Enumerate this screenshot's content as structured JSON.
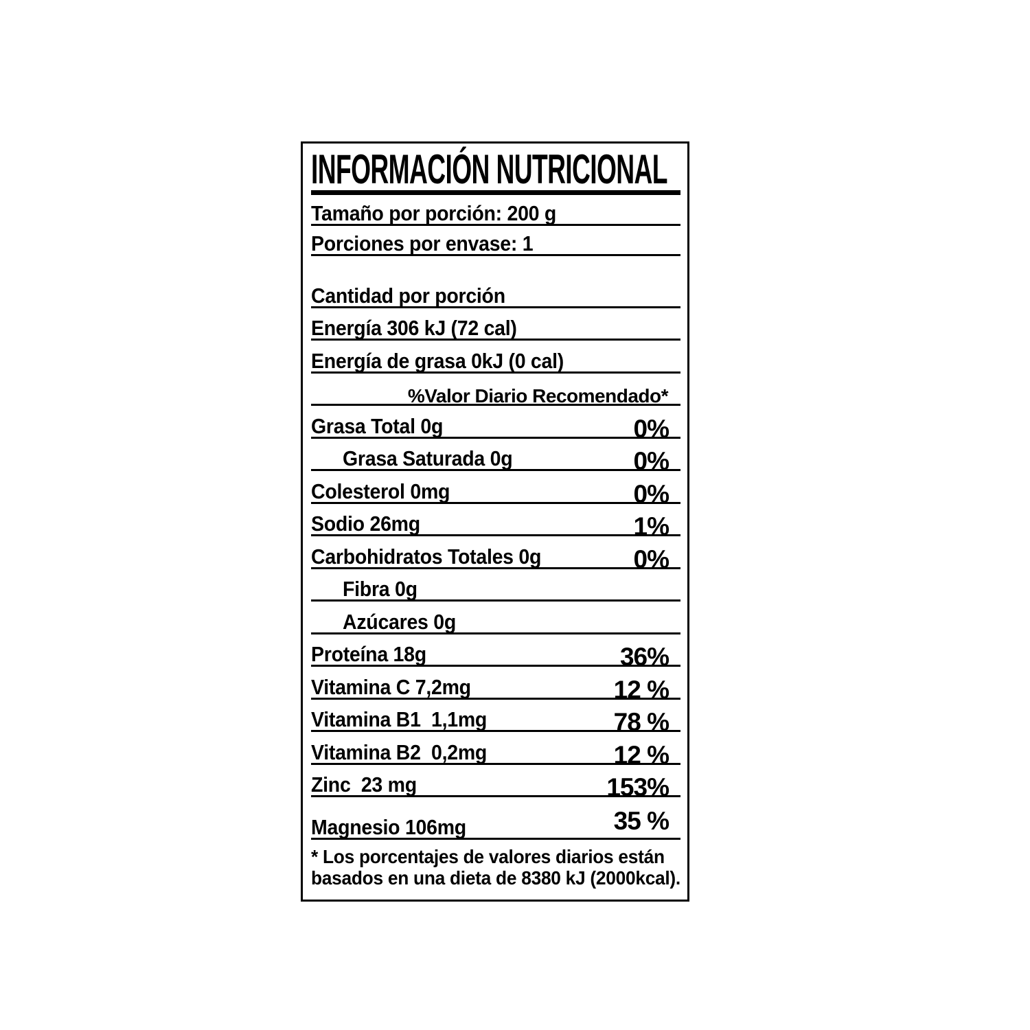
{
  "colors": {
    "ink": "#000000",
    "paper": "#ffffff"
  },
  "label": {
    "title": "INFORMACIÓN NUTRICIONAL",
    "rows": [
      {
        "label": "Tamaño por porción: 200 g"
      },
      {
        "label": "Porciones por envase: 1"
      },
      {
        "label": "Cantidad por porción"
      },
      {
        "label": "Energía 306 kJ (72 cal)"
      },
      {
        "label": "Energía de grasa 0kJ (0 cal)"
      },
      {
        "label": "%Valor Diario Recomendado*"
      },
      {
        "label": "Grasa Total 0g",
        "percent": "0%"
      },
      {
        "label": "Grasa Saturada 0g",
        "percent": "0%",
        "indent": true
      },
      {
        "label": "Colesterol 0mg",
        "percent": "0%"
      },
      {
        "label": "Sodio 26mg",
        "percent": "1%"
      },
      {
        "label": "Carbohidratos Totales 0g",
        "percent": "0%"
      },
      {
        "label": "Fibra 0g",
        "indent": true
      },
      {
        "label": "Azúcares 0g",
        "indent": true
      },
      {
        "label": "Proteína 18g",
        "percent": "36%"
      },
      {
        "label": "Vitamina C 7,2mg",
        "percent": "12 %"
      },
      {
        "label": "Vitamina B1  1,1mg",
        "percent": "78 %"
      },
      {
        "label": "Vitamina B2  0,2mg",
        "percent": "12 %"
      },
      {
        "label": "Zinc  23 mg",
        "percent": "153%"
      },
      {
        "label": "Magnesio 106mg",
        "percent": "35 %"
      }
    ],
    "footnote": [
      "* Los porcentajes de valores diarios están",
      "basados en una dieta de 8380 kJ (2000kcal)."
    ]
  }
}
